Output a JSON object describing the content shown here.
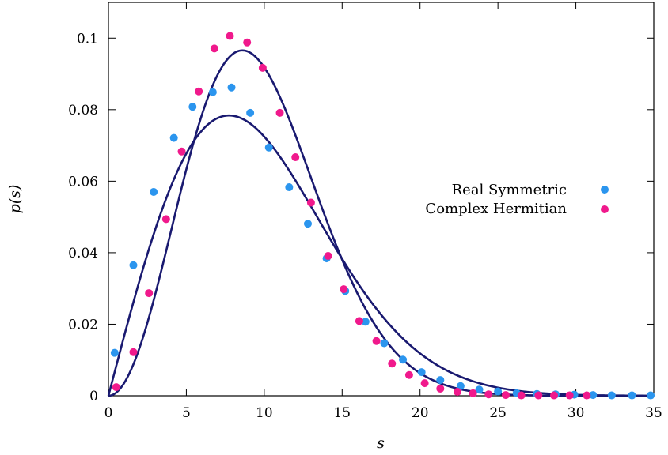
{
  "chart_data": {
    "type": "scatter",
    "xlabel": "s",
    "ylabel": "p(s)",
    "xlim": [
      0,
      35
    ],
    "ylim": [
      0,
      0.11
    ],
    "x_ticks": [
      0,
      5,
      10,
      15,
      20,
      25,
      30,
      35
    ],
    "x_tick_labels": [
      "0",
      "5",
      "10",
      "15",
      "20",
      "25",
      "30",
      "35"
    ],
    "y_ticks": [
      0,
      0.02,
      0.04,
      0.06,
      0.08,
      0.1
    ],
    "y_tick_labels": [
      "0",
      "0.02",
      "0.04",
      "0.06",
      "0.08",
      "0.1"
    ],
    "grid": false,
    "legend_position": "right",
    "colors": {
      "curve": "#191970",
      "real_symmetric": "#2b95ee",
      "complex_hermitian": "#f0198c"
    },
    "series": [
      {
        "name": "Real Symmetric",
        "marker": "circle",
        "x": [
          0.4,
          1.6,
          2.9,
          4.2,
          5.4,
          6.7,
          7.9,
          9.1,
          10.3,
          11.6,
          12.8,
          14.0,
          15.2,
          16.5,
          17.7,
          18.9,
          20.1,
          21.3,
          22.6,
          23.8,
          25.0,
          26.2,
          27.5,
          28.7,
          29.9,
          31.1,
          32.3,
          33.6,
          34.8
        ],
        "y": [
          0.012,
          0.0365,
          0.057,
          0.0721,
          0.0808,
          0.0849,
          0.0862,
          0.0791,
          0.0694,
          0.0583,
          0.0481,
          0.0384,
          0.0293,
          0.0207,
          0.0147,
          0.0101,
          0.0066,
          0.0044,
          0.0027,
          0.0017,
          0.0012,
          0.0007,
          0.0005,
          0.0004,
          0.0003,
          0.0002,
          0.0001,
          0.0001,
          0.0001
        ]
      },
      {
        "name": "Complex Hermitian",
        "marker": "circle",
        "x": [
          0.5,
          1.6,
          2.6,
          3.7,
          4.7,
          5.8,
          6.8,
          7.8,
          8.9,
          9.9,
          11.0,
          12.0,
          13.0,
          14.1,
          15.1,
          16.1,
          17.2,
          18.2,
          19.3,
          20.3,
          21.3,
          22.4,
          23.4,
          24.4,
          25.5,
          26.5,
          27.6,
          28.6,
          29.6,
          30.7
        ],
        "y": [
          0.0024,
          0.0122,
          0.0287,
          0.0494,
          0.0683,
          0.0851,
          0.0971,
          0.1006,
          0.0988,
          0.0917,
          0.0791,
          0.0667,
          0.054,
          0.0391,
          0.0298,
          0.0209,
          0.0153,
          0.009,
          0.0058,
          0.0035,
          0.002,
          0.0011,
          0.0007,
          0.0004,
          0.0002,
          0.0001,
          0.0001,
          0.0001,
          0.0001,
          0.0001
        ]
      }
    ]
  }
}
